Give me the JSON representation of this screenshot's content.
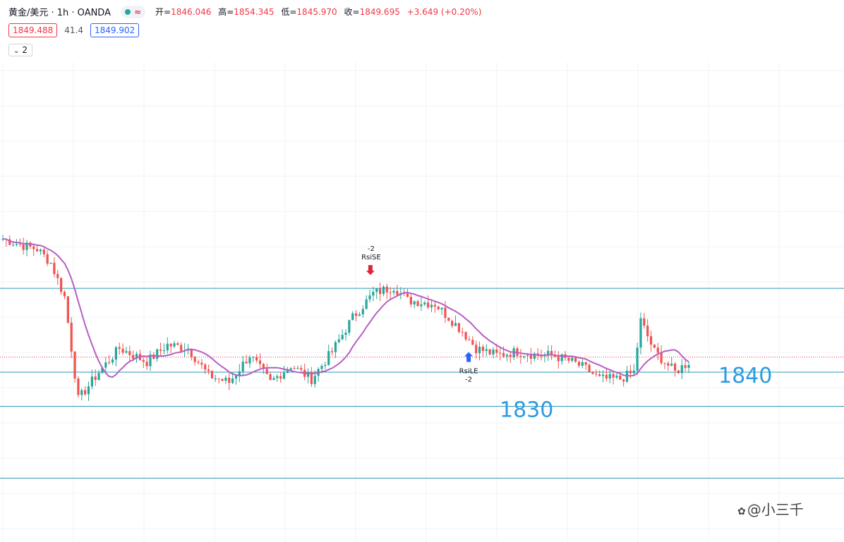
{
  "header": {
    "symbol": "黄金/美元 · 1h · OANDA",
    "wave_icon": "≈",
    "open_label": "开=",
    "open": "1846.046",
    "high_label": "高=",
    "high": "1854.345",
    "low_label": "低=",
    "low": "1845.970",
    "close_label": "收=",
    "close": "1849.695",
    "change": "+3.649 (+0.20%)"
  },
  "trade": {
    "sell": "1849.488",
    "spread": "41.4",
    "buy": "1849.902"
  },
  "indicators_toggle": {
    "count": "2",
    "icon": "chevron-down-icon"
  },
  "colors": {
    "up": "#26a69a",
    "down": "#ef5350",
    "ma": "#b65fc4",
    "level": "#2a9bb8",
    "label": "#2b9be0",
    "current": "#f23645"
  },
  "watermark": "@小三千",
  "chart_data": {
    "type": "candlestick",
    "ylim": [
      1812,
      1877
    ],
    "levels": [
      1849.8,
      1840,
      1830,
      1840,
      1830
    ],
    "level_labels": [
      {
        "value": 1840,
        "text": "1840"
      },
      {
        "value": 1830,
        "text": "1830"
      }
    ],
    "horizontal_lines": [
      1864.5,
      1840,
      1830,
      1809
    ],
    "current_price": 1844.4,
    "signals": [
      {
        "name": "RsiSE",
        "qty": "-2",
        "direction": "sell",
        "index": 108
      },
      {
        "name": "RsiLE",
        "qty": "-2",
        "direction": "buy",
        "index": 135
      }
    ],
    "keypoints": [
      [
        0,
        1879
      ],
      [
        6,
        1877
      ],
      [
        10,
        1876
      ],
      [
        14,
        1872
      ],
      [
        18,
        1862
      ],
      [
        22,
        1832
      ],
      [
        28,
        1840
      ],
      [
        34,
        1847
      ],
      [
        42,
        1843
      ],
      [
        48,
        1848
      ],
      [
        54,
        1847
      ],
      [
        60,
        1839
      ],
      [
        66,
        1837
      ],
      [
        72,
        1845
      ],
      [
        78,
        1837
      ],
      [
        84,
        1842
      ],
      [
        90,
        1838
      ],
      [
        96,
        1846
      ],
      [
        102,
        1856
      ],
      [
        108,
        1863
      ],
      [
        114,
        1865
      ],
      [
        118,
        1861
      ],
      [
        126,
        1860
      ],
      [
        134,
        1852
      ],
      [
        138,
        1847
      ],
      [
        144,
        1845
      ],
      [
        150,
        1846
      ],
      [
        156,
        1845
      ],
      [
        160,
        1845
      ],
      [
        166,
        1843
      ],
      [
        170,
        1841
      ],
      [
        174,
        1838
      ],
      [
        180,
        1838
      ],
      [
        184,
        1840
      ],
      [
        186,
        1855
      ],
      [
        190,
        1846
      ],
      [
        196,
        1840
      ],
      [
        200,
        1843
      ]
    ]
  }
}
